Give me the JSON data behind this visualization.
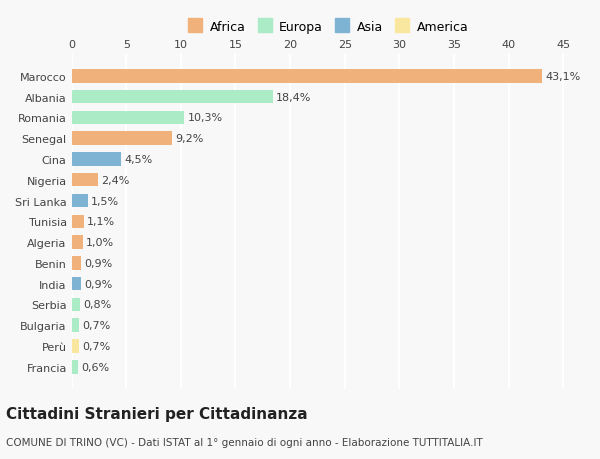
{
  "countries": [
    "Francia",
    "Perù",
    "Bulgaria",
    "Serbia",
    "India",
    "Benin",
    "Algeria",
    "Tunisia",
    "Sri Lanka",
    "Nigeria",
    "Cina",
    "Senegal",
    "Romania",
    "Albania",
    "Marocco"
  ],
  "values": [
    0.6,
    0.7,
    0.7,
    0.8,
    0.9,
    0.9,
    1.0,
    1.1,
    1.5,
    2.4,
    4.5,
    9.2,
    10.3,
    18.4,
    43.1
  ],
  "labels": [
    "0,6%",
    "0,7%",
    "0,7%",
    "0,8%",
    "0,9%",
    "0,9%",
    "1,0%",
    "1,1%",
    "1,5%",
    "2,4%",
    "4,5%",
    "9,2%",
    "10,3%",
    "18,4%",
    "43,1%"
  ],
  "continents": [
    "Europa",
    "America",
    "Europa",
    "Europa",
    "Asia",
    "Africa",
    "Africa",
    "Africa",
    "Asia",
    "Africa",
    "Asia",
    "Africa",
    "Europa",
    "Europa",
    "Africa"
  ],
  "continent_colors": {
    "Africa": "#F0B27A",
    "Europa": "#ABEBC6",
    "Asia": "#7FB3D3",
    "America": "#F9E79F"
  },
  "legend_order": [
    "Africa",
    "Europa",
    "Asia",
    "America"
  ],
  "legend_colors": {
    "Africa": "#F0B27A",
    "Europa": "#ABEBC6",
    "Asia": "#7FB3D3",
    "America": "#F9E79F"
  },
  "title": "Cittadini Stranieri per Cittadinanza",
  "subtitle": "COMUNE DI TRINO (VC) - Dati ISTAT al 1° gennaio di ogni anno - Elaborazione TUTTITALIA.IT",
  "xlim": [
    0,
    47
  ],
  "xticks": [
    0,
    5,
    10,
    15,
    20,
    25,
    30,
    35,
    40,
    45
  ],
  "background_color": "#F8F8F8",
  "grid_color": "#FFFFFF",
  "bar_height": 0.65
}
